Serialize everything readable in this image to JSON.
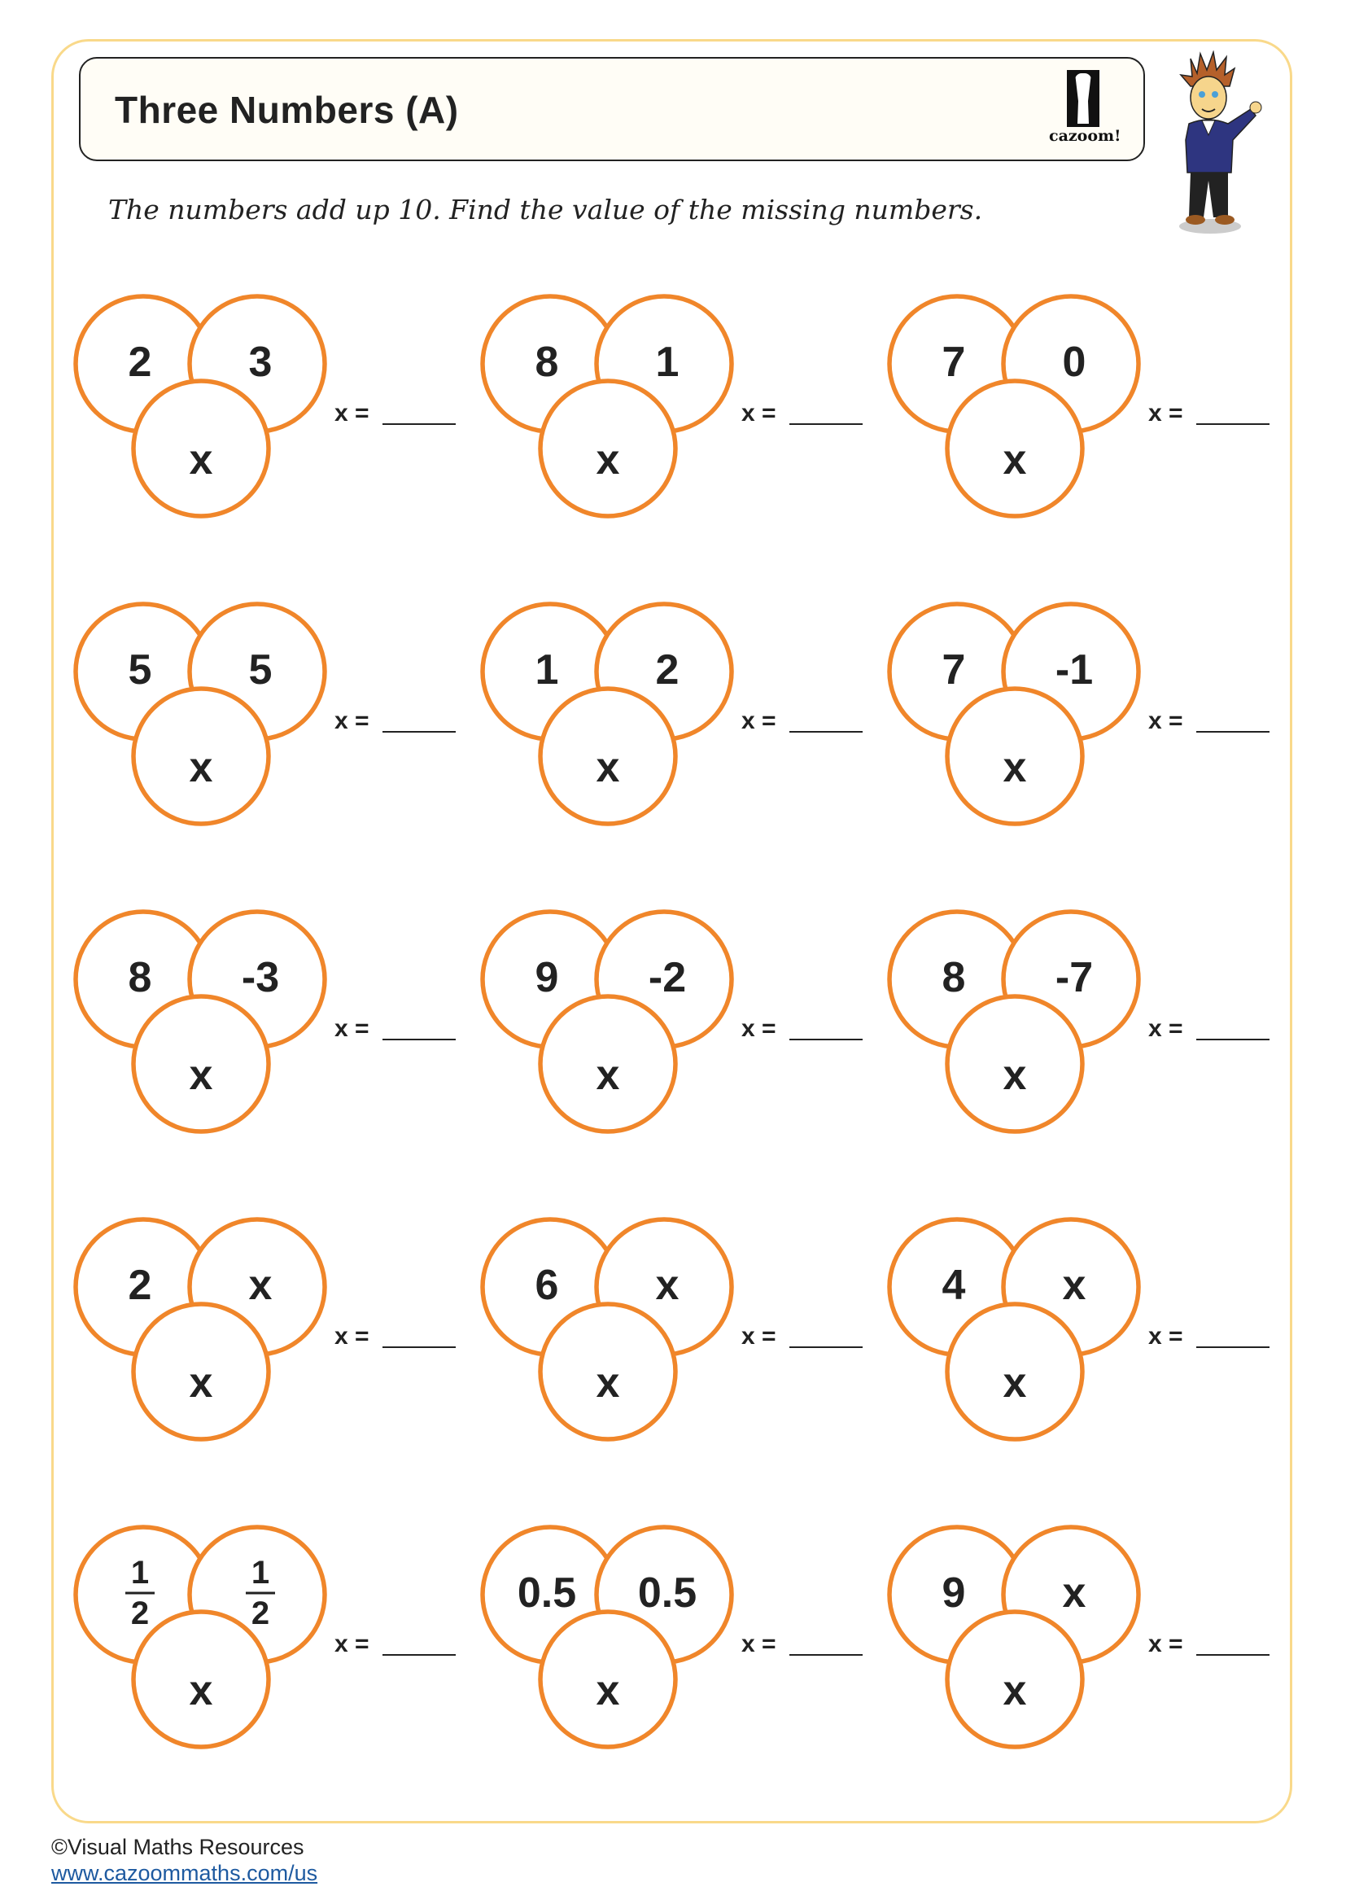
{
  "header": {
    "title": "Three Numbers (A)",
    "logo_text": "cazoom!"
  },
  "instruction": "The numbers add up 10. Find the value of the missing numbers.",
  "colors": {
    "circle_stroke": "#f0862a",
    "frame": "#f9d98a",
    "text": "#222222",
    "link": "#1e5aa0"
  },
  "answer_label": "x =",
  "puzzles": [
    {
      "a": "2",
      "b": "3",
      "c": "x"
    },
    {
      "a": "8",
      "b": "1",
      "c": "x"
    },
    {
      "a": "7",
      "b": "0",
      "c": "x"
    },
    {
      "a": "5",
      "b": "5",
      "c": "x"
    },
    {
      "a": "1",
      "b": "2",
      "c": "x"
    },
    {
      "a": "7",
      "b": "-1",
      "c": "x"
    },
    {
      "a": "8",
      "b": "-3",
      "c": "x"
    },
    {
      "a": "9",
      "b": "-2",
      "c": "x"
    },
    {
      "a": "8",
      "b": "-7",
      "c": "x"
    },
    {
      "a": "2",
      "b": "x",
      "c": "x"
    },
    {
      "a": "6",
      "b": "x",
      "c": "x"
    },
    {
      "a": "4",
      "b": "x",
      "c": "x"
    },
    {
      "a": {
        "num": "1",
        "den": "2"
      },
      "b": {
        "num": "1",
        "den": "2"
      },
      "c": "x"
    },
    {
      "a": "0.5",
      "b": "0.5",
      "c": "x"
    },
    {
      "a": "9",
      "b": "x",
      "c": "x"
    }
  ],
  "footer": {
    "copyright": "©Visual Maths Resources",
    "url": "www.cazoommaths.com/us"
  }
}
